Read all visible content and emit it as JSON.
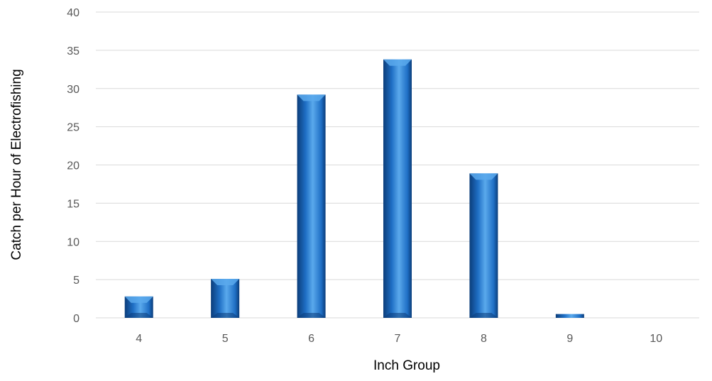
{
  "chart_data": {
    "type": "bar",
    "title": "",
    "xlabel": "Inch Group",
    "ylabel": "Catch per Hour of Electrofishing",
    "categories": [
      "4",
      "5",
      "6",
      "7",
      "8",
      "9",
      "10"
    ],
    "values": [
      2.8,
      5.1,
      29.2,
      33.8,
      18.9,
      0.5,
      0
    ],
    "ylim": [
      0,
      40
    ],
    "yticks": [
      0,
      5,
      10,
      15,
      20,
      25,
      30,
      35,
      40
    ],
    "grid": true,
    "legend": "none",
    "colors": {
      "bar": "#1f6fc5",
      "bar_highlight": "#5aa9ec",
      "bar_shadow": "#0b3d7a",
      "gridline": "#d9d9d9",
      "tick_text": "#595959",
      "axis_title": "#000000"
    }
  }
}
